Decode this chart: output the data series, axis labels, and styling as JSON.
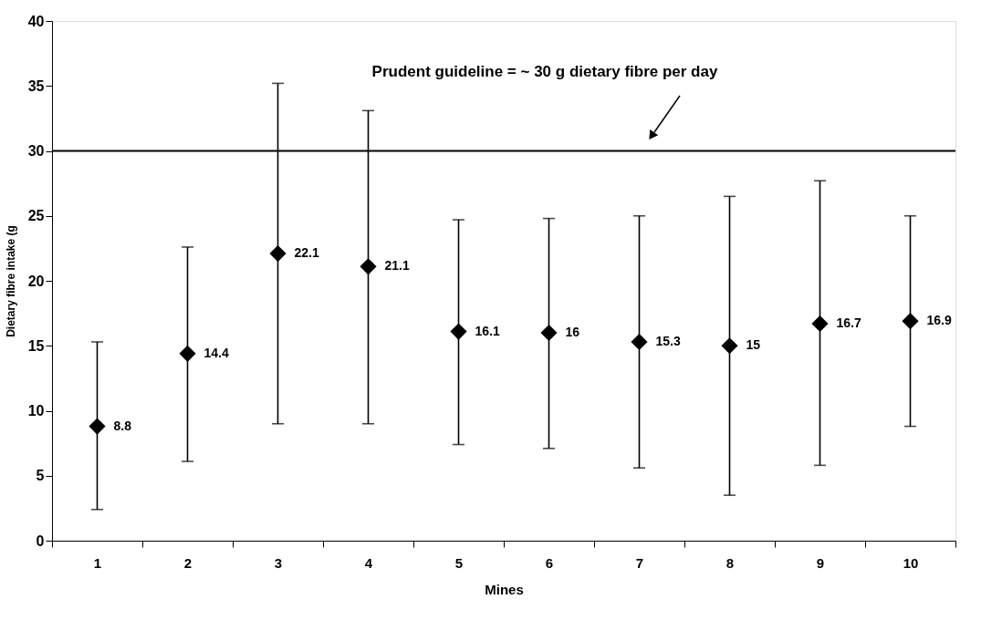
{
  "chart_data": {
    "type": "scatter",
    "xlabel": "Mines",
    "ylabel": "Dietary fibre intake (g",
    "categories": [
      "1",
      "2",
      "3",
      "4",
      "5",
      "6",
      "7",
      "8",
      "9",
      "10"
    ],
    "values": [
      8.8,
      14.4,
      22.1,
      21.1,
      16.1,
      16,
      15.3,
      15,
      16.7,
      16.9
    ],
    "errors": [
      [
        2.4,
        15.3
      ],
      [
        6.1,
        22.6
      ],
      [
        9.0,
        35.2
      ],
      [
        9.0,
        33.1
      ],
      [
        7.4,
        24.7
      ],
      [
        7.1,
        24.8
      ],
      [
        5.6,
        25.0
      ],
      [
        3.5,
        26.5
      ],
      [
        5.8,
        27.7
      ],
      [
        8.8,
        25.0
      ]
    ],
    "color": "#000000",
    "marker": "diamond",
    "data_labels": true,
    "ylim": [
      0,
      40
    ],
    "yticks": [
      0,
      5,
      10,
      15,
      20,
      25,
      30,
      35,
      40
    ],
    "ref_lines": [
      {
        "axis": "y",
        "value": 30,
        "color": "#000000"
      }
    ],
    "annotations": [
      "Prudent guideline = ~ 30 g dietary fibre per day"
    ],
    "grid": false
  }
}
